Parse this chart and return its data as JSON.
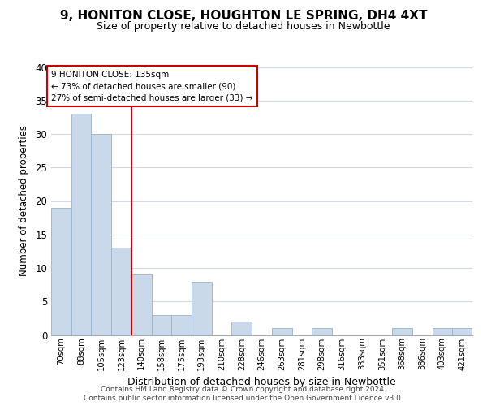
{
  "title": "9, HONITON CLOSE, HOUGHTON LE SPRING, DH4 4XT",
  "subtitle": "Size of property relative to detached houses in Newbottle",
  "xlabel": "Distribution of detached houses by size in Newbottle",
  "ylabel": "Number of detached properties",
  "bin_labels": [
    "70sqm",
    "88sqm",
    "105sqm",
    "123sqm",
    "140sqm",
    "158sqm",
    "175sqm",
    "193sqm",
    "210sqm",
    "228sqm",
    "246sqm",
    "263sqm",
    "281sqm",
    "298sqm",
    "316sqm",
    "333sqm",
    "351sqm",
    "368sqm",
    "386sqm",
    "403sqm",
    "421sqm"
  ],
  "bar_heights": [
    19,
    33,
    30,
    13,
    9,
    3,
    3,
    8,
    0,
    2,
    0,
    1,
    0,
    1,
    0,
    0,
    0,
    1,
    0,
    1,
    1
  ],
  "bar_color": "#c9d9e9",
  "bar_edge_color": "#9ab4cc",
  "highlight_line_color": "#cc0000",
  "annotation_text": "9 HONITON CLOSE: 135sqm\n← 73% of detached houses are smaller (90)\n27% of semi-detached houses are larger (33) →",
  "annotation_box_edge_color": "#cc0000",
  "ylim": [
    0,
    40
  ],
  "yticks": [
    0,
    5,
    10,
    15,
    20,
    25,
    30,
    35,
    40
  ],
  "footer_line1": "Contains HM Land Registry data © Crown copyright and database right 2024.",
  "footer_line2": "Contains public sector information licensed under the Open Government Licence v3.0.",
  "background_color": "#ffffff",
  "grid_color": "#d0dae8"
}
